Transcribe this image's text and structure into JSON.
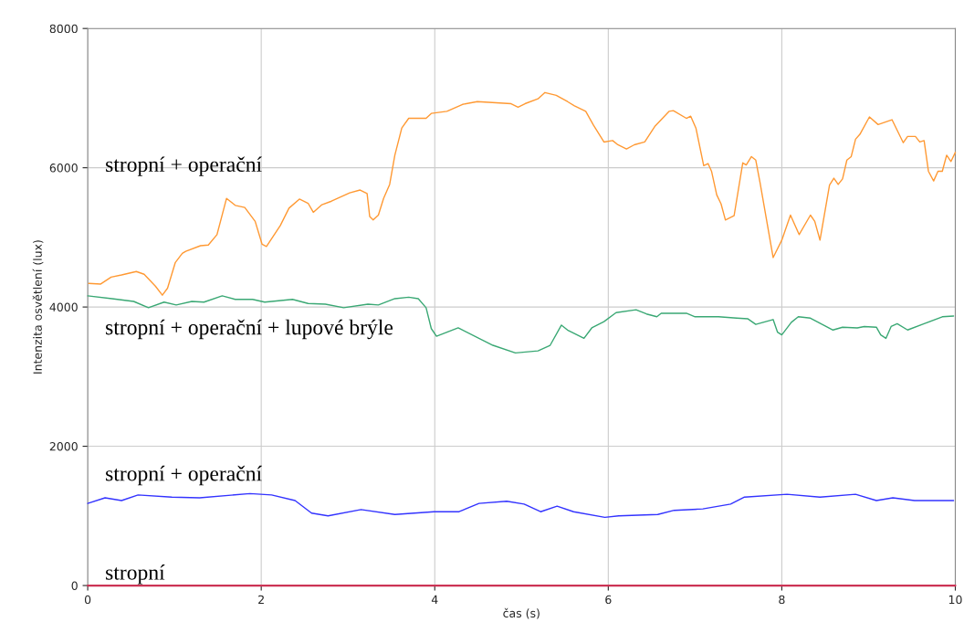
{
  "chart_data": {
    "type": "line",
    "xlabel": "čas (s)",
    "ylabel": "Intenzita osvětlení (lux)",
    "xlim": [
      0,
      10
    ],
    "ylim": [
      0,
      8000
    ],
    "xticks": [
      0,
      2,
      4,
      6,
      8,
      10
    ],
    "yticks": [
      0,
      2000,
      4000,
      6000,
      8000
    ],
    "grid": true,
    "legend": false,
    "series": [
      {
        "name": "stropní + operační",
        "color": "#ff9933",
        "x": [
          0.01,
          0.15,
          0.27,
          0.39,
          0.56,
          0.65,
          0.78,
          0.86,
          0.92,
          1.01,
          1.09,
          1.13,
          1.3,
          1.39,
          1.49,
          1.6,
          1.7,
          1.81,
          1.93,
          2.01,
          2.06,
          2.22,
          2.32,
          2.44,
          2.54,
          2.6,
          2.7,
          2.81,
          3.02,
          3.14,
          3.22,
          3.25,
          3.29,
          3.35,
          3.41,
          3.48,
          3.54,
          3.62,
          3.7,
          3.9,
          3.96,
          4.14,
          4.32,
          4.49,
          4.88,
          4.96,
          5.04,
          5.19,
          5.27,
          5.4,
          5.53,
          5.61,
          5.74,
          5.83,
          5.95,
          6.05,
          6.11,
          6.21,
          6.3,
          6.42,
          6.54,
          6.7,
          6.75,
          6.9,
          6.95,
          7.01,
          7.1,
          7.15,
          7.19,
          7.25,
          7.3,
          7.35,
          7.45,
          7.55,
          7.59,
          7.65,
          7.7,
          7.75,
          7.9,
          8.0,
          8.1,
          8.2,
          8.33,
          8.38,
          8.44,
          8.55,
          8.6,
          8.65,
          8.7,
          8.75,
          8.8,
          8.85,
          8.9,
          9.01,
          9.11,
          9.27,
          9.4,
          9.45,
          9.54,
          9.59,
          9.64,
          9.69,
          9.75,
          9.8,
          9.85,
          9.9,
          9.95,
          10.0
        ],
        "values": [
          4340,
          4330,
          4430,
          4460,
          4510,
          4470,
          4300,
          4170,
          4270,
          4640,
          4770,
          4800,
          4880,
          4890,
          5040,
          5560,
          5460,
          5430,
          5230,
          4900,
          4870,
          5170,
          5420,
          5550,
          5490,
          5360,
          5470,
          5520,
          5640,
          5680,
          5630,
          5300,
          5250,
          5320,
          5560,
          5760,
          6180,
          6570,
          6710,
          6710,
          6780,
          6810,
          6910,
          6950,
          6920,
          6870,
          6920,
          6990,
          7080,
          7040,
          6950,
          6890,
          6810,
          6610,
          6370,
          6390,
          6330,
          6270,
          6330,
          6370,
          6600,
          6810,
          6820,
          6710,
          6740,
          6570,
          6030,
          6060,
          5950,
          5610,
          5480,
          5250,
          5310,
          6070,
          6040,
          6160,
          6110,
          5780,
          4710,
          4960,
          5320,
          5040,
          5320,
          5230,
          4960,
          5750,
          5850,
          5760,
          5840,
          6110,
          6160,
          6410,
          6480,
          6730,
          6620,
          6690,
          6360,
          6450,
          6450,
          6370,
          6390,
          5950,
          5810,
          5950,
          5950,
          6180,
          6090,
          6220
        ]
      },
      {
        "name": "stropní + operační + lupové brýle",
        "color": "#3aa874",
        "x": [
          0,
          0.28,
          0.53,
          0.7,
          0.88,
          1.02,
          1.2,
          1.34,
          1.55,
          1.7,
          1.9,
          2.04,
          2.36,
          2.54,
          2.74,
          2.95,
          3.23,
          3.35,
          3.54,
          3.7,
          3.81,
          3.9,
          3.96,
          4.02,
          4.27,
          4.67,
          4.93,
          5.19,
          5.33,
          5.46,
          5.53,
          5.72,
          5.81,
          5.95,
          6.09,
          6.32,
          6.44,
          6.56,
          6.61,
          6.9,
          7.0,
          7.27,
          7.48,
          7.61,
          7.7,
          7.9,
          7.95,
          8.0,
          8.11,
          8.19,
          8.33,
          8.42,
          8.59,
          8.7,
          8.87,
          8.95,
          9.09,
          9.14,
          9.2,
          9.26,
          9.33,
          9.45,
          9.64,
          9.85,
          9.98
        ],
        "values": [
          4160,
          4120,
          4080,
          3990,
          4070,
          4030,
          4080,
          4070,
          4160,
          4110,
          4110,
          4070,
          4110,
          4050,
          4040,
          3990,
          4040,
          4030,
          4120,
          4140,
          4120,
          3990,
          3690,
          3580,
          3700,
          3450,
          3340,
          3370,
          3450,
          3740,
          3670,
          3550,
          3700,
          3790,
          3920,
          3960,
          3900,
          3860,
          3910,
          3910,
          3860,
          3860,
          3840,
          3830,
          3750,
          3820,
          3640,
          3600,
          3780,
          3860,
          3840,
          3780,
          3670,
          3710,
          3700,
          3720,
          3710,
          3600,
          3550,
          3720,
          3760,
          3670,
          3760,
          3860,
          3870
        ]
      },
      {
        "name": "stropní + operační",
        "color": "#3333ff",
        "x": [
          0,
          0.2,
          0.39,
          0.58,
          0.97,
          1.29,
          1.87,
          2.12,
          2.39,
          2.58,
          2.77,
          3.15,
          3.54,
          3.99,
          4.28,
          4.51,
          4.83,
          5.03,
          5.22,
          5.41,
          5.6,
          5.96,
          6.12,
          6.57,
          6.76,
          7.09,
          7.41,
          7.57,
          8.06,
          8.44,
          8.85,
          9.09,
          9.28,
          9.53,
          9.98
        ],
        "values": [
          1180,
          1260,
          1220,
          1300,
          1270,
          1260,
          1320,
          1300,
          1220,
          1040,
          1000,
          1090,
          1020,
          1060,
          1060,
          1180,
          1210,
          1170,
          1060,
          1140,
          1060,
          980,
          1000,
          1020,
          1080,
          1100,
          1170,
          1270,
          1310,
          1270,
          1310,
          1220,
          1260,
          1220,
          1220
        ]
      },
      {
        "name": "stropní",
        "color": "#cc3355",
        "x": [
          0,
          10
        ],
        "values": [
          0,
          0
        ]
      }
    ]
  }
}
